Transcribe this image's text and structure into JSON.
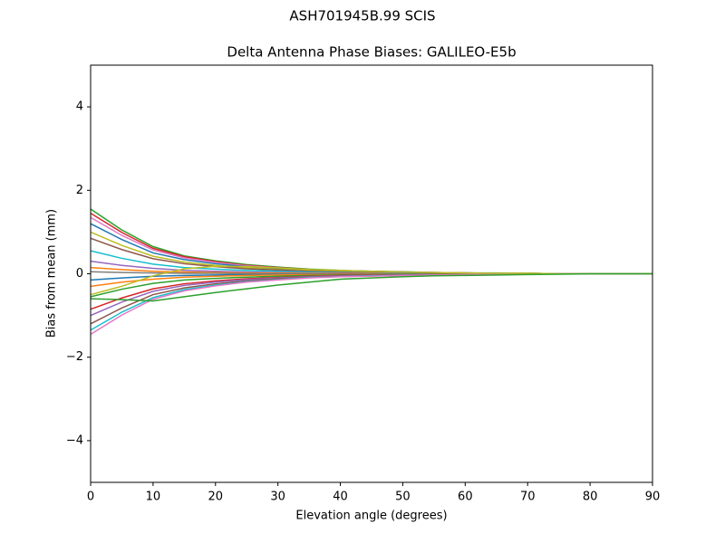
{
  "chart_data": {
    "type": "line",
    "suptitle": "ASH701945B.99   SCIS",
    "title": "Delta Antenna Phase Biases: GALILEO-E5b",
    "x_label": "Elevation angle (degrees)",
    "y_label": "Bias from mean (mm)",
    "xlim": [
      0,
      90
    ],
    "xticks": [
      0,
      10,
      20,
      30,
      40,
      50,
      60,
      70,
      80,
      90
    ],
    "ylim": [
      -5,
      5
    ],
    "yticks": [
      {
        "value": -4,
        "label": "−4"
      },
      {
        "value": -2,
        "label": "−2"
      },
      0,
      2,
      4
    ],
    "grid": false,
    "x": [
      0,
      5,
      10,
      15,
      20,
      25,
      30,
      35,
      40,
      45,
      50,
      55,
      60,
      65,
      70,
      75,
      80,
      85,
      90
    ],
    "series": [
      {
        "color": "#2ca02c",
        "values": [
          1.55,
          1.05,
          0.65,
          0.43,
          0.31,
          0.22,
          0.16,
          0.11,
          0.08,
          0.06,
          0.05,
          0.03,
          0.02,
          0.02,
          0.01,
          0,
          0,
          0,
          0
        ]
      },
      {
        "color": "#d62728",
        "values": [
          1.45,
          0.99,
          0.61,
          0.41,
          0.29,
          0.2,
          0.15,
          0.1,
          0.07,
          0.06,
          0.04,
          0.03,
          0.02,
          0.01,
          0.01,
          0,
          0,
          0,
          0
        ]
      },
      {
        "color": "#e377c2",
        "values": [
          1.35,
          0.92,
          0.57,
          0.38,
          0.27,
          0.19,
          0.14,
          0.09,
          0.07,
          0.05,
          0.04,
          0.03,
          0.02,
          0.01,
          0.01,
          0,
          0,
          0,
          0
        ]
      },
      {
        "color": "#1f77b4",
        "values": [
          1.2,
          0.82,
          0.5,
          0.34,
          0.24,
          0.17,
          0.12,
          0.08,
          0.06,
          0.05,
          0.04,
          0.02,
          0.02,
          0.01,
          0.01,
          0,
          0,
          0,
          0
        ]
      },
      {
        "color": "#bcbd22",
        "values": [
          1.0,
          0.68,
          0.42,
          0.28,
          0.2,
          0.14,
          0.1,
          0.07,
          0.05,
          0.04,
          0.03,
          0.02,
          0.02,
          0.01,
          0.01,
          0,
          0,
          0,
          0
        ]
      },
      {
        "color": "#8c564b",
        "values": [
          0.85,
          0.58,
          0.36,
          0.24,
          0.17,
          0.12,
          0.09,
          0.06,
          0.04,
          0.03,
          0.03,
          0.02,
          0.01,
          0.01,
          0,
          0,
          0,
          0,
          0
        ]
      },
      {
        "color": "#17becf",
        "values": [
          0.55,
          0.37,
          0.23,
          0.15,
          0.11,
          0.08,
          0.06,
          0.04,
          0.03,
          0.02,
          0.02,
          0.01,
          0.01,
          0.01,
          0,
          0,
          0,
          0,
          0
        ]
      },
      {
        "color": "#9467bd",
        "values": [
          0.3,
          0.2,
          0.13,
          0.08,
          0.06,
          0.04,
          0.03,
          0.02,
          0.02,
          0.01,
          0.01,
          0.01,
          0,
          0,
          0,
          0,
          0,
          0,
          0
        ]
      },
      {
        "color": "#ff7f0e",
        "values": [
          0.15,
          0.1,
          0.06,
          0.04,
          0.03,
          0.02,
          0.02,
          0.01,
          0.01,
          0.01,
          0,
          0,
          0,
          0,
          0,
          0,
          0,
          0,
          0
        ]
      },
      {
        "color": "#7f7f7f",
        "values": [
          0.05,
          0.03,
          0.02,
          0.01,
          0.01,
          0,
          0,
          0,
          0,
          0,
          0,
          0,
          0,
          0,
          0,
          0,
          0,
          0,
          0
        ]
      },
      {
        "color": "#1f77b4",
        "values": [
          -0.15,
          -0.1,
          -0.06,
          -0.04,
          -0.03,
          -0.02,
          -0.02,
          -0.01,
          -0.01,
          -0.01,
          0,
          0,
          0,
          0,
          0,
          0,
          0,
          0,
          0
        ]
      },
      {
        "color": "#ff7f0e",
        "values": [
          -0.3,
          -0.2,
          -0.13,
          -0.08,
          -0.06,
          -0.04,
          -0.03,
          -0.02,
          -0.02,
          -0.01,
          -0.01,
          -0.01,
          0,
          0,
          0,
          0,
          0,
          0,
          0
        ]
      },
      {
        "color": "#2ca02c",
        "values": [
          -0.55,
          -0.37,
          -0.23,
          -0.15,
          -0.11,
          -0.08,
          -0.06,
          -0.04,
          -0.03,
          -0.02,
          -0.02,
          -0.01,
          -0.01,
          -0.01,
          0,
          0,
          0,
          0,
          0
        ]
      },
      {
        "color": "#d62728",
        "values": [
          -0.85,
          -0.58,
          -0.36,
          -0.24,
          -0.17,
          -0.12,
          -0.09,
          -0.06,
          -0.04,
          -0.03,
          -0.03,
          -0.02,
          -0.01,
          -0.01,
          0,
          0,
          0,
          0,
          0
        ]
      },
      {
        "color": "#9467bd",
        "values": [
          -1.0,
          -0.68,
          -0.42,
          -0.28,
          -0.2,
          -0.14,
          -0.1,
          -0.07,
          -0.05,
          -0.04,
          -0.03,
          -0.02,
          -0.02,
          -0.01,
          -0.01,
          0,
          0,
          0,
          0
        ]
      },
      {
        "color": "#8c564b",
        "values": [
          -1.2,
          -0.82,
          -0.5,
          -0.34,
          -0.24,
          -0.17,
          -0.12,
          -0.08,
          -0.06,
          -0.05,
          -0.04,
          -0.02,
          -0.02,
          -0.01,
          -0.01,
          0,
          0,
          0,
          0
        ]
      },
      {
        "color": "#17becf",
        "values": [
          -1.35,
          -0.92,
          -0.57,
          -0.38,
          -0.27,
          -0.19,
          -0.14,
          -0.09,
          -0.07,
          -0.05,
          -0.04,
          -0.03,
          -0.02,
          -0.01,
          -0.01,
          0,
          0,
          0,
          0
        ]
      },
      {
        "color": "#e377c2",
        "values": [
          -1.45,
          -0.99,
          -0.61,
          -0.41,
          -0.29,
          -0.2,
          -0.15,
          -0.1,
          -0.07,
          -0.06,
          -0.04,
          -0.03,
          -0.02,
          -0.01,
          -0.01,
          0,
          0,
          0,
          0
        ]
      },
      {
        "color": "#bcbd22",
        "values": [
          -0.5,
          -0.3,
          -0.05,
          0.12,
          0.18,
          0.17,
          0.14,
          0.1,
          0.08,
          0.06,
          0.04,
          0.03,
          0.02,
          0.01,
          0.01,
          0,
          0,
          0,
          0
        ]
      },
      {
        "color": "#2ca02c",
        "values": [
          -0.6,
          -0.62,
          -0.65,
          -0.55,
          -0.45,
          -0.36,
          -0.27,
          -0.2,
          -0.13,
          -0.1,
          -0.07,
          -0.05,
          -0.04,
          -0.03,
          -0.02,
          -0.01,
          0,
          0,
          0
        ]
      }
    ]
  }
}
